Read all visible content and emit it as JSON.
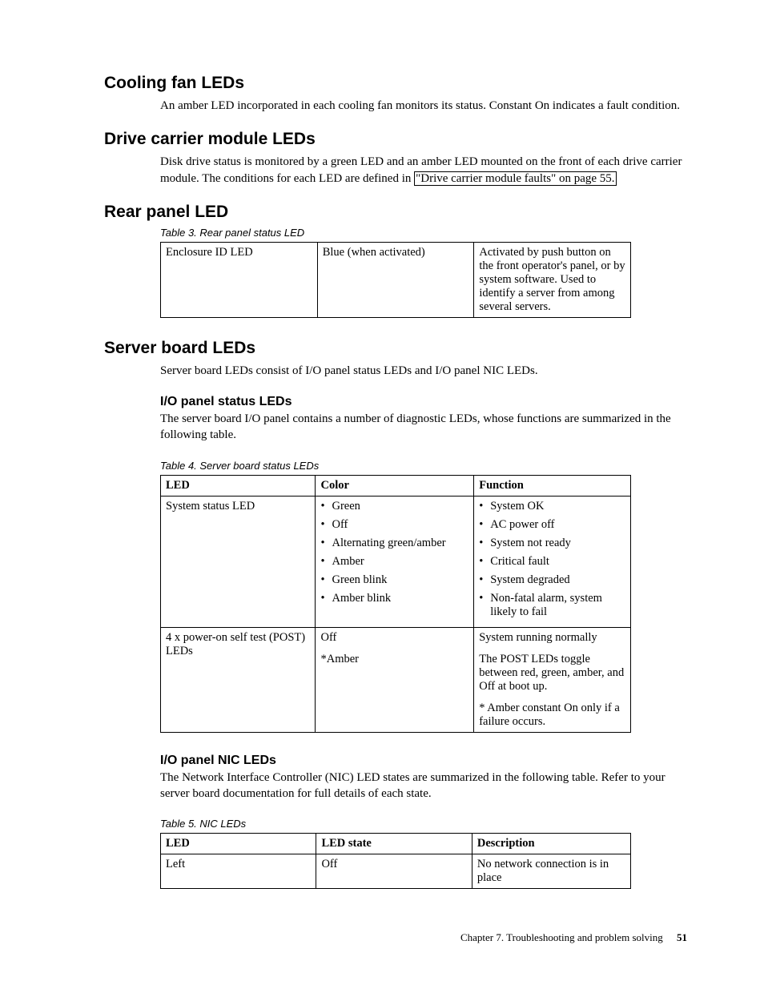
{
  "sections": {
    "cooling": {
      "heading": "Cooling fan LEDs",
      "body": "An amber LED incorporated in each cooling fan monitors its status. Constant On indicates a fault condition."
    },
    "drive": {
      "heading": "Drive carrier module LEDs",
      "body_pre": "Disk drive status is monitored by a green LED and an amber LED mounted on the front of each drive carrier module. The conditions for each LED are defined in ",
      "link_text": "\"Drive carrier module faults\" on page 55."
    },
    "rear": {
      "heading": "Rear panel LED",
      "caption": "Table 3. Rear panel status LED",
      "row": {
        "c1": "Enclosure ID LED",
        "c2": "Blue (when activated)",
        "c3": "Activated by push button on the front operator's panel, or by system software. Used to identify a server from among several servers."
      }
    },
    "server": {
      "heading": "Server board LEDs",
      "body": "Server board LEDs consist of I/O panel status LEDs and I/O panel NIC LEDs.",
      "status": {
        "heading": "I/O panel status LEDs",
        "body": "The server board I/O panel contains a number of diagnostic LEDs, whose functions are summarized in the following table.",
        "caption": "Table 4. Server board status LEDs",
        "headers": {
          "c1": "LED",
          "c2": "Color",
          "c3": "Function"
        },
        "row1": {
          "c1": "System status LED",
          "colors": [
            "Green",
            "Off",
            "Alternating green/amber",
            "Amber",
            "Green blink",
            "Amber blink"
          ],
          "functions": [
            "System OK",
            "AC power off",
            "System not ready",
            "Critical fault",
            "System degraded",
            "Non-fatal alarm, system likely to fail"
          ]
        },
        "row2": {
          "c1": "4 x power-on self test (POST) LEDs",
          "c2a": "Off",
          "c2b": "*Amber",
          "c3a": "System running normally",
          "c3b": "The POST LEDs toggle between red, green, amber, and Off at boot up.",
          "c3c": "* Amber constant On only if a failure occurs."
        }
      },
      "nic": {
        "heading": "I/O panel NIC LEDs",
        "body": "The Network Interface Controller (NIC) LED states are summarized in the following table. Refer to your server board documentation for full details of each state.",
        "caption": "Table 5. NIC LEDs",
        "headers": {
          "c1": "LED",
          "c2": "LED state",
          "c3": "Description"
        },
        "row1": {
          "c1": "Left",
          "c2": "Off",
          "c3": "No network connection is in place"
        }
      }
    }
  },
  "footer": {
    "chapter": "Chapter 7. Troubleshooting and problem solving",
    "page": "51"
  }
}
